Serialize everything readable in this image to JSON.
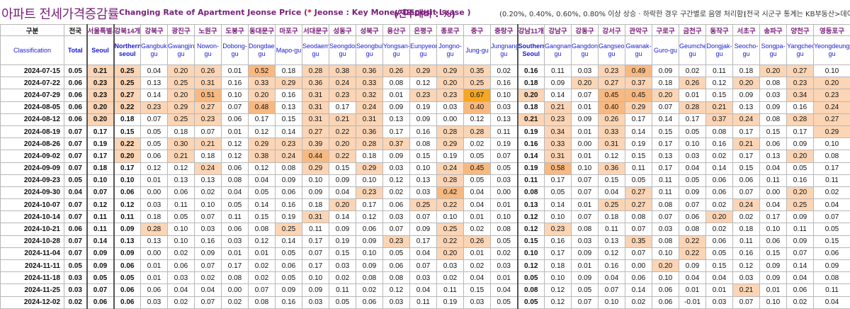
{
  "title": {
    "main": "아파트 전세가격증감률",
    "sub_prefix": "Changing Rate of Apartment Jeonse Price (",
    "sub_star": "* ",
    "sub_suffix": "Jeonse : Key Money Deposit Lease )",
    "unit": "(전주대비 : %)",
    "note1": "(0.20%, 0.40%, 0.60%, 0.80% 이상 상승 · 하락한 경우 구간별로 음영 처리함)",
    "note2": "(전국 시군구 통계는 KB부동산>데이"
  },
  "header": {
    "row_label_kr": "구분",
    "row_label_en": "Classification",
    "columns": [
      {
        "kr": "전국",
        "en": "Total"
      },
      {
        "kr": "서울특별시",
        "en": "Seoul"
      },
      {
        "kr": "강북14개",
        "en": "Northern seoul"
      },
      {
        "kr": "강북구",
        "en": "Gangbuk-gu"
      },
      {
        "kr": "광진구",
        "en": "Gwangjin-gu"
      },
      {
        "kr": "노원구",
        "en": "Nowon-gu"
      },
      {
        "kr": "도봉구",
        "en": "Dobong-gu"
      },
      {
        "kr": "동대문구",
        "en": "Dongdaemun-gu"
      },
      {
        "kr": "마포구",
        "en": "Mapo-gu"
      },
      {
        "kr": "서대문구",
        "en": "Seodaemun-gu"
      },
      {
        "kr": "성동구",
        "en": "Seongdong-gu"
      },
      {
        "kr": "성북구",
        "en": "Seongbuk-gu"
      },
      {
        "kr": "용산구",
        "en": "Yongsan-gu"
      },
      {
        "kr": "은평구",
        "en": "Eunpyeong-gu"
      },
      {
        "kr": "종로구",
        "en": "Jongno-gu"
      },
      {
        "kr": "중구",
        "en": "Jung-gu"
      },
      {
        "kr": "중랑구",
        "en": "Jungnang-gu"
      },
      {
        "kr": "강남11개",
        "en": "Southern Seoul"
      },
      {
        "kr": "강남구",
        "en": "Gangnam-gu"
      },
      {
        "kr": "강동구",
        "en": "Gangdong-gu"
      },
      {
        "kr": "강서구",
        "en": "Gangseo-gu"
      },
      {
        "kr": "관악구",
        "en": "Gwanak-gu"
      },
      {
        "kr": "구로구",
        "en": "Guro-gu"
      },
      {
        "kr": "금천구",
        "en": "Geumcheon-gu"
      },
      {
        "kr": "동작구",
        "en": "Dongjak-gu"
      },
      {
        "kr": "서초구",
        "en": "Seocho-gu"
      },
      {
        "kr": "송파구",
        "en": "Songpa-gu"
      },
      {
        "kr": "양천구",
        "en": "Yangcheon-gu"
      },
      {
        "kr": "영등포구",
        "en": "Yeongdeungpo-gu"
      }
    ]
  },
  "rows": [
    {
      "date": "2024-07-15",
      "v": [
        "0.05",
        "0.21",
        "0.25",
        "0.04",
        "0.20",
        "0.26",
        "0.01",
        "0.52",
        "0.18",
        "0.28",
        "0.38",
        "0.36",
        "0.26",
        "0.29",
        "0.29",
        "0.35",
        "0.02",
        "0.16",
        "0.11",
        "0.03",
        "0.23",
        "0.49",
        "0.09",
        "0.02",
        "0.11",
        "0.18",
        "0.20",
        "0.27",
        "0.10"
      ]
    },
    {
      "date": "2024-07-22",
      "v": [
        "0.06",
        "0.23",
        "0.25",
        "0.13",
        "0.25",
        "0.31",
        "0.16",
        "0.33",
        "0.29",
        "0.36",
        "0.24",
        "0.33",
        "0.08",
        "0.12",
        "0.20",
        "0.25",
        "0.16",
        "0.18",
        "0.09",
        "0.20",
        "0.27",
        "0.37",
        "0.18",
        "0.26",
        "0.12",
        "0.20",
        "0.08",
        "0.23",
        "0.20"
      ]
    },
    {
      "date": "2024-07-29",
      "v": [
        "0.06",
        "0.23",
        "0.27",
        "0.14",
        "0.20",
        "0.51",
        "0.10",
        "0.20",
        "0.16",
        "0.31",
        "0.23",
        "0.32",
        "0.01",
        "0.23",
        "0.23",
        "0.67",
        "0.10",
        "0.20",
        "0.14",
        "0.07",
        "0.45",
        "0.45",
        "0.20",
        "0.01",
        "0.15",
        "0.09",
        "0.03",
        "0.34",
        "0.23"
      ]
    },
    {
      "date": "2024-08-05",
      "v": [
        "0.06",
        "0.20",
        "0.22",
        "0.23",
        "0.29",
        "0.27",
        "0.07",
        "0.48",
        "0.13",
        "0.31",
        "0.17",
        "0.24",
        "0.09",
        "0.19",
        "0.03",
        "0.40",
        "0.03",
        "0.18",
        "0.21",
        "0.01",
        "0.40",
        "0.29",
        "0.07",
        "0.28",
        "0.21",
        "0.13",
        "0.09",
        "0.16",
        "0.24"
      ]
    },
    {
      "date": "2024-08-12",
      "v": [
        "0.06",
        "0.20",
        "0.18",
        "0.07",
        "0.25",
        "0.23",
        "0.06",
        "0.17",
        "0.15",
        "0.31",
        "0.21",
        "0.31",
        "0.13",
        "0.09",
        "0.00",
        "0.12",
        "0.13",
        "0.21",
        "0.23",
        "0.09",
        "0.26",
        "0.17",
        "0.14",
        "0.17",
        "0.37",
        "0.24",
        "0.08",
        "0.28",
        "0.27"
      ]
    },
    {
      "date": "2024-08-19",
      "v": [
        "0.07",
        "0.17",
        "0.15",
        "0.05",
        "0.18",
        "0.07",
        "0.01",
        "0.12",
        "0.14",
        "0.27",
        "0.22",
        "0.36",
        "0.17",
        "0.16",
        "0.28",
        "0.28",
        "0.11",
        "0.19",
        "0.34",
        "0.01",
        "0.33",
        "0.14",
        "0.15",
        "0.05",
        "0.08",
        "0.17",
        "0.15",
        "0.17",
        "0.29"
      ]
    },
    {
      "date": "2024-08-26",
      "v": [
        "0.07",
        "0.19",
        "0.22",
        "0.05",
        "0.30",
        "0.21",
        "0.12",
        "0.29",
        "0.23",
        "0.39",
        "0.20",
        "0.28",
        "0.37",
        "0.08",
        "0.29",
        "0.02",
        "0.19",
        "0.16",
        "0.33",
        "0.00",
        "0.31",
        "0.19",
        "0.17",
        "0.10",
        "0.16",
        "0.21",
        "0.06",
        "0.09",
        "0.10"
      ]
    },
    {
      "date": "2024-09-02",
      "v": [
        "0.07",
        "0.17",
        "0.20",
        "0.06",
        "0.21",
        "0.18",
        "0.12",
        "0.38",
        "0.24",
        "0.44",
        "0.22",
        "0.18",
        "0.09",
        "0.15",
        "0.19",
        "0.05",
        "0.07",
        "0.14",
        "0.31",
        "0.01",
        "0.12",
        "0.15",
        "0.13",
        "0.03",
        "0.02",
        "0.17",
        "0.13",
        "0.20",
        "0.08"
      ]
    },
    {
      "date": "2024-09-09",
      "v": [
        "0.07",
        "0.18",
        "0.17",
        "0.12",
        "0.12",
        "0.24",
        "0.06",
        "0.12",
        "0.08",
        "0.29",
        "0.15",
        "0.29",
        "0.03",
        "0.10",
        "0.24",
        "0.45",
        "0.05",
        "0.19",
        "0.58",
        "0.10",
        "0.36",
        "0.11",
        "0.17",
        "0.04",
        "0.14",
        "0.15",
        "0.04",
        "0.05",
        "0.17"
      ]
    },
    {
      "date": "2024-09-23",
      "v": [
        "0.05",
        "0.10",
        "0.10",
        "0.01",
        "0.13",
        "0.13",
        "0.08",
        "0.04",
        "0.09",
        "0.10",
        "0.09",
        "0.10",
        "0.12",
        "0.13",
        "0.28",
        "0.05",
        "0.03",
        "0.11",
        "0.17",
        "0.07",
        "0.15",
        "0.05",
        "0.11",
        "0.05",
        "0.06",
        "0.06",
        "0.11",
        "0.16",
        "0.11"
      ]
    },
    {
      "date": "2024-09-30",
      "v": [
        "0.04",
        "0.07",
        "0.06",
        "0.00",
        "0.06",
        "0.02",
        "0.04",
        "0.05",
        "0.06",
        "0.09",
        "0.04",
        "0.23",
        "0.02",
        "0.03",
        "0.42",
        "0.04",
        "0.00",
        "0.08",
        "0.05",
        "0.07",
        "0.04",
        "0.27",
        "0.11",
        "0.09",
        "0.06",
        "0.07",
        "0.00",
        "0.20",
        "0.02"
      ]
    },
    {
      "date": "2024-10-07",
      "v": [
        "0.07",
        "0.12",
        "0.12",
        "0.03",
        "0.11",
        "0.10",
        "0.05",
        "0.14",
        "0.16",
        "0.18",
        "0.20",
        "0.17",
        "0.06",
        "0.25",
        "0.22",
        "0.04",
        "0.01",
        "0.13",
        "0.14",
        "0.01",
        "0.25",
        "0.27",
        "0.08",
        "0.07",
        "0.02",
        "0.24",
        "0.04",
        "0.25",
        "0.04"
      ]
    },
    {
      "date": "2024-10-14",
      "v": [
        "0.07",
        "0.11",
        "0.11",
        "0.18",
        "0.05",
        "0.07",
        "0.11",
        "0.15",
        "0.19",
        "0.31",
        "0.14",
        "0.12",
        "0.03",
        "0.07",
        "0.10",
        "0.01",
        "0.10",
        "0.12",
        "0.10",
        "0.07",
        "0.18",
        "0.08",
        "0.07",
        "0.06",
        "0.20",
        "0.02",
        "0.17",
        "0.09",
        "0.07"
      ]
    },
    {
      "date": "2024-10-21",
      "v": [
        "0.06",
        "0.11",
        "0.09",
        "0.28",
        "0.10",
        "0.03",
        "0.06",
        "0.08",
        "0.25",
        "0.11",
        "0.09",
        "0.06",
        "0.07",
        "0.09",
        "0.25",
        "0.02",
        "0.08",
        "0.12",
        "0.23",
        "0.08",
        "0.11",
        "0.07",
        "0.03",
        "0.08",
        "0.02",
        "0.18",
        "0.10",
        "0.11",
        "0.05"
      ]
    },
    {
      "date": "2024-10-28",
      "v": [
        "0.07",
        "0.14",
        "0.13",
        "0.13",
        "0.10",
        "0.16",
        "0.03",
        "0.12",
        "0.14",
        "0.17",
        "0.19",
        "0.09",
        "0.23",
        "0.17",
        "0.22",
        "0.26",
        "0.05",
        "0.15",
        "0.16",
        "0.03",
        "0.13",
        "0.35",
        "0.08",
        "0.22",
        "0.06",
        "0.11",
        "0.06",
        "0.09",
        "0.15"
      ]
    },
    {
      "date": "2024-11-04",
      "v": [
        "0.07",
        "0.09",
        "0.09",
        "0.00",
        "0.02",
        "0.09",
        "0.01",
        "0.01",
        "0.05",
        "0.07",
        "0.15",
        "0.10",
        "0.05",
        "0.04",
        "0.20",
        "0.01",
        "0.02",
        "0.10",
        "0.17",
        "0.09",
        "0.12",
        "0.07",
        "0.10",
        "0.22",
        "0.05",
        "0.16",
        "0.15",
        "0.07",
        "0.06"
      ]
    },
    {
      "date": "2024-11-11",
      "v": [
        "0.05",
        "0.09",
        "0.06",
        "0.01",
        "0.06",
        "0.07",
        "0.17",
        "0.02",
        "0.06",
        "0.17",
        "0.03",
        "0.09",
        "0.06",
        "0.07",
        "0.03",
        "0.02",
        "0.03",
        "0.12",
        "0.18",
        "0.01",
        "0.16",
        "0.00",
        "0.20",
        "0.09",
        "0.15",
        "0.12",
        "0.09",
        "0.14",
        "0.09"
      ]
    },
    {
      "date": "2024-11-18",
      "v": [
        "0.03",
        "0.05",
        "0.05",
        "0.01",
        "0.03",
        "0.02",
        "0.08",
        "0.02",
        "0.05",
        "0.10",
        "0.02",
        "0.08",
        "0.08",
        "0.03",
        "0.02",
        "0.04",
        "0.01",
        "0.05",
        "0.10",
        "0.09",
        "0.04",
        "0.06",
        "0.10",
        "0.04",
        "0.04",
        "0.03",
        "0.09",
        "0.04",
        "0.08"
      ]
    },
    {
      "date": "2024-11-25",
      "v": [
        "0.03",
        "0.07",
        "0.06",
        "0.06",
        "0.04",
        "0.04",
        "0.00",
        "0.07",
        "0.09",
        "0.09",
        "0.11",
        "0.02",
        "0.12",
        "0.04",
        "0.11",
        "0.15",
        "0.04",
        "0.08",
        "0.12",
        "0.05",
        "0.07",
        "0.14",
        "0.06",
        "0.01",
        "0.01",
        "0.21",
        "0.01",
        "0.06",
        "0.11"
      ]
    },
    {
      "date": "2024-12-02",
      "v": [
        "0.02",
        "0.06",
        "0.06",
        "0.03",
        "0.02",
        "0.07",
        "0.02",
        "0.08",
        "0.16",
        "0.03",
        "0.05",
        "0.06",
        "0.03",
        "0.11",
        "0.19",
        "0.03",
        "0.05",
        "0.05",
        "0.12",
        "0.07",
        "0.10",
        "0.02",
        "0.06",
        "-0.01",
        "0.03",
        "0.07",
        "0.10",
        "0.02",
        "0.04"
      ]
    }
  ]
}
